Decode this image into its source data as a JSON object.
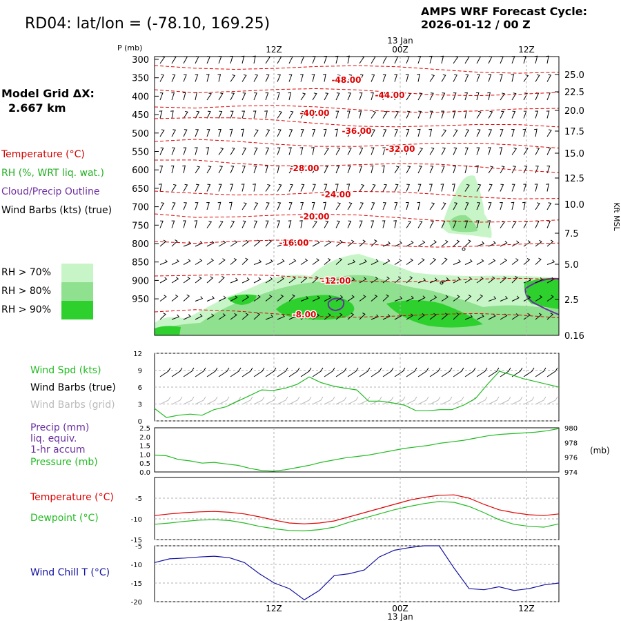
{
  "header": {
    "title": "RD04:  lat/lon = (-78.10, 169.25)",
    "cycle_line1": "AMPS WRF Forecast Cycle:",
    "cycle_line2": "2026-01-12 / 00  Z"
  },
  "model_grid": {
    "line1": "Model Grid ΔX:",
    "line2": "2.667 km"
  },
  "legend_upper": [
    {
      "text": "Temperature (°C)",
      "color": "#d00000"
    },
    {
      "text": "RH (%, WRT liq. wat.)",
      "color": "#20b020"
    },
    {
      "text": "Cloud/Precip Outline",
      "color": "#7030a0"
    },
    {
      "text": "Wind Barbs (kts) (true)",
      "color": "#000000"
    }
  ],
  "rh_legend": [
    {
      "text": "RH > 70%",
      "color": "#c8f5c8"
    },
    {
      "text": "RH > 80%",
      "color": "#8fe08f"
    },
    {
      "text": "RH > 90%",
      "color": "#2ed02e"
    }
  ],
  "colors": {
    "temp": "#e00000",
    "green": "#22bb22",
    "purple": "#6a2fa0",
    "blue": "#1010a0",
    "grid": "#b0b0b0"
  },
  "time_axis": {
    "top_date": "13 Jan",
    "top_ticks": [
      "12Z",
      "00Z",
      "12Z"
    ],
    "bottom_ticks": [
      "12Z",
      "00Z",
      "12Z"
    ],
    "bottom_date": "13 Jan"
  },
  "chart_data": [
    {
      "type": "heatmap",
      "title": "",
      "ylabel_left": "P (mb)",
      "ylabel_right": "Kft MSL",
      "pressure_ticks": [
        "300",
        "350",
        "400",
        "450",
        "500",
        "550",
        "600",
        "650",
        "700",
        "750",
        "800",
        "850",
        "900",
        "950"
      ],
      "height_ticks": [
        "25.0",
        "22.5",
        "20.0",
        "17.5",
        "15.0",
        "12.5",
        "10.0",
        "7.5",
        "5.0",
        "2.5",
        "0.16"
      ],
      "temperature_contour_labels": [
        "-48.00",
        "-44.00",
        "-40.00",
        "-36.00",
        "-32.00",
        "-28.00",
        "-24.00",
        "-20.00",
        "-16.00",
        "-12.00",
        "-8.00"
      ]
    },
    {
      "type": "line",
      "legend": [
        "Wind Spd (kts)",
        "Wind Barbs (true)",
        "Wind Barbs (grid)"
      ],
      "ylim": [
        0,
        12
      ],
      "yticks": [
        "0",
        "3",
        "6",
        "9",
        "12"
      ],
      "series": [
        {
          "name": "Wind Spd (kts)",
          "values": [
            2.2,
            0.6,
            1.0,
            1.2,
            1.0,
            2.0,
            2.5,
            3.5,
            4.5,
            5.5,
            5.4,
            5.8,
            6.5,
            7.8,
            6.8,
            6.2,
            5.8,
            5.5,
            3.5,
            3.5,
            3.2,
            2.8,
            1.8,
            1.8,
            2.0,
            2.0,
            2.8,
            4.0,
            6.5,
            8.8,
            8.2,
            7.5,
            7.0,
            6.5,
            6.0
          ]
        }
      ]
    },
    {
      "type": "line",
      "legend": [
        "Precip (mm)",
        "liq. equiv.",
        "1-hr accum",
        "Pressure (mb)"
      ],
      "yticks_left": [
        "0.0",
        "0.5",
        "1.0",
        "1.5",
        "2.0",
        "2.5"
      ],
      "yticks_right": [
        "974",
        "976",
        "978",
        "980"
      ],
      "ylim_left": [
        0,
        2.5
      ],
      "ylim_right": [
        974,
        980
      ],
      "right_unit": "(mb)",
      "series": [
        {
          "name": "Pressure (mb)",
          "values": [
            976.3,
            976.2,
            975.7,
            975.5,
            975.2,
            975.3,
            975.1,
            974.9,
            974.5,
            974.2,
            974.1,
            974.3,
            974.6,
            974.9,
            975.3,
            975.6,
            975.9,
            976.1,
            976.3,
            976.6,
            976.9,
            977.2,
            977.4,
            977.6,
            977.9,
            978.1,
            978.3,
            978.6,
            978.9,
            979.1,
            979.2,
            979.3,
            979.4,
            979.6,
            979.9
          ]
        }
      ]
    },
    {
      "type": "line",
      "legend": [
        "Temperature (°C)",
        "Dewpoint (°C)"
      ],
      "ylim": [
        -15,
        0
      ],
      "yticks": [
        "-5",
        "-10",
        "-15"
      ],
      "series": [
        {
          "name": "Temperature (°C)",
          "values": [
            -9.2,
            -8.8,
            -8.5,
            -8.3,
            -8.2,
            -8.4,
            -8.8,
            -9.5,
            -10.3,
            -11.0,
            -11.2,
            -11.0,
            -10.5,
            -9.5,
            -8.5,
            -7.5,
            -6.5,
            -5.5,
            -4.8,
            -4.3,
            -4.2,
            -5.0,
            -6.5,
            -7.8,
            -8.5,
            -9.0,
            -9.2,
            -8.8
          ]
        },
        {
          "name": "Dewpoint (°C)",
          "values": [
            -11.3,
            -11.0,
            -10.6,
            -10.3,
            -10.2,
            -10.4,
            -11.0,
            -11.8,
            -12.4,
            -12.8,
            -12.9,
            -12.6,
            -12.0,
            -10.8,
            -9.8,
            -8.8,
            -7.8,
            -7.0,
            -6.3,
            -5.8,
            -6.0,
            -7.0,
            -8.5,
            -10.2,
            -11.3,
            -11.8,
            -12.0,
            -11.2
          ]
        }
      ]
    },
    {
      "type": "line",
      "legend": [
        "Wind Chill T (°C)"
      ],
      "ylim": [
        -20,
        -5
      ],
      "yticks": [
        "-5",
        "-10",
        "-15",
        "-20"
      ],
      "series": [
        {
          "name": "Wind Chill T (°C)",
          "values": [
            -9.5,
            -8.5,
            -8.3,
            -8.0,
            -7.8,
            -8.2,
            -9.5,
            -12.5,
            -15.0,
            -16.5,
            -19.5,
            -17.0,
            -13.0,
            -12.5,
            -11.5,
            -8.0,
            -6.2,
            -5.5,
            -5.0,
            -5.0,
            -11.0,
            -16.5,
            -16.8,
            -16.0,
            -17.0,
            -16.5,
            -15.5,
            -15.0
          ]
        }
      ]
    }
  ]
}
